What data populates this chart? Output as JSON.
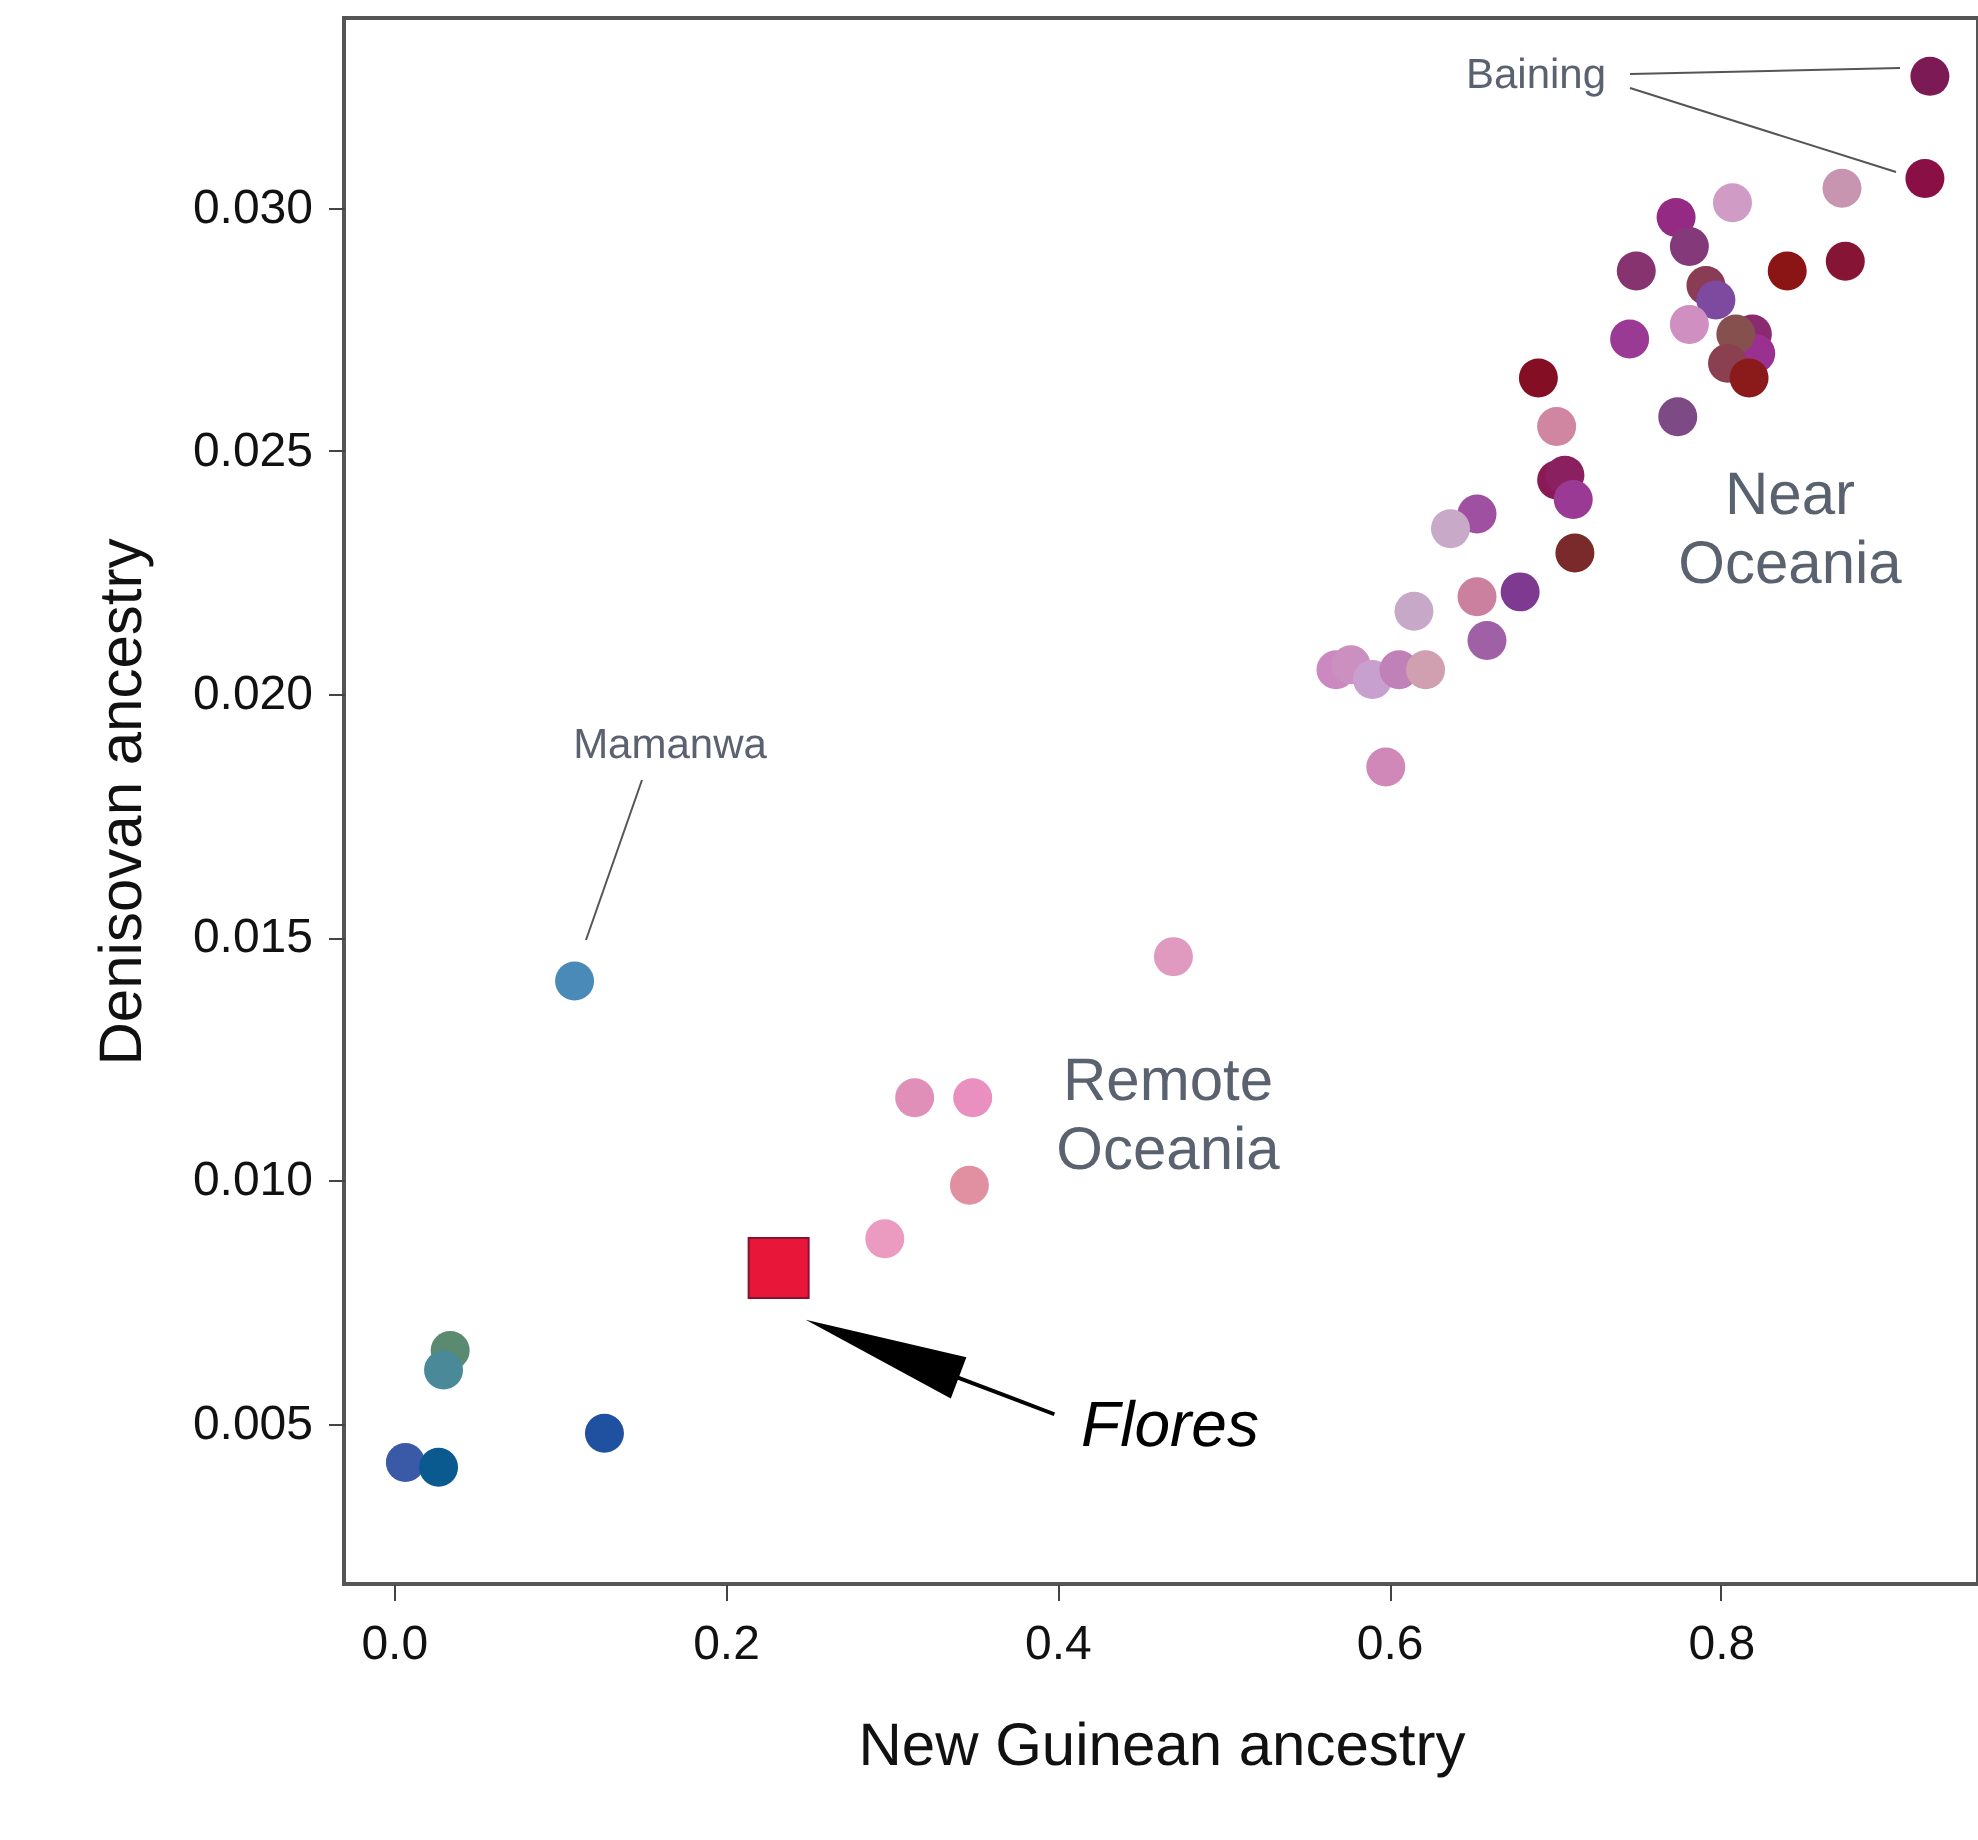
{
  "chart_data": {
    "type": "scatter",
    "xlabel": "New Guinean ancestry",
    "ylabel": "Denisovan ancestry",
    "marker": "circle",
    "xlim": [
      -0.03,
      0.955
    ],
    "ylim": [
      0.0017,
      0.0339
    ],
    "xticks": [
      {
        "value": 0,
        "label": "0.0"
      },
      0.2,
      0.4,
      0.6,
      0.8
    ],
    "yticks": [
      0.005,
      {
        "value": 0.01,
        "label": "0.010"
      },
      0.015,
      {
        "value": 0.02,
        "label": "0.020"
      },
      0.025,
      {
        "value": 0.03,
        "label": "0.030"
      }
    ],
    "series": [
      {
        "x": [
          0.926,
          0.923,
          0.873,
          0.807,
          0.773,
          0.781,
          0.749,
          0.84,
          0.875,
          0.791,
          0.797,
          0.781,
          0.745,
          0.819,
          0.821,
          0.809,
          0.804,
          0.817,
          0.69,
          0.774,
          0.701,
          0.701,
          0.706,
          0.711,
          0.712,
          0.653,
          0.637,
          0.679,
          0.653,
          0.615,
          0.659,
          0.568,
          0.577,
          0.59,
          0.606,
          0.622,
          0.598,
          0.109,
          0.47,
          0.314,
          0.349,
          0.347,
          0.296,
          0.034,
          0.03,
          0.007,
          0.027,
          0.127
        ],
        "values": [
          0.0327,
          0.0306,
          0.0304,
          0.0301,
          0.0298,
          0.0292,
          0.0287,
          0.0287,
          0.0289,
          0.0284,
          0.0281,
          0.0276,
          0.0273,
          0.0274,
          0.027,
          0.0274,
          0.0268,
          0.0265,
          0.0265,
          0.0257,
          0.0255,
          0.0244,
          0.0245,
          0.024,
          0.0229,
          0.0237,
          0.0234,
          0.0221,
          0.022,
          0.0217,
          0.0211,
          0.0205,
          0.0206,
          0.0203,
          0.0205,
          0.0205,
          0.0185,
          0.0141,
          0.0146,
          0.0117,
          0.0117,
          0.0099,
          0.0088,
          0.0065,
          0.0061,
          0.0042,
          0.0041,
          0.0048
        ],
        "colors": [
          "#7b1a55",
          "#8a0f45",
          "#c895b0",
          "#d09cc6",
          "#952a85",
          "#843a7a",
          "#86336f",
          "#8b1515",
          "#861535",
          "#8a3c55",
          "#7d4aa0",
          "#cf8fc0",
          "#9a3a95",
          "#8a2a70",
          "#9a3090",
          "#85504e",
          "#8a4050",
          "#8b1a1a",
          "#840f25",
          "#7d4a85",
          "#d085a0",
          "#8a1a55",
          "#8a2060",
          "#9a3a95",
          "#7a2a2a",
          "#a050a0",
          "#c8aac8",
          "#7d3a90",
          "#cc80a0",
          "#c8a8c8",
          "#a060a5",
          "#cc88c0",
          "#cc90c0",
          "#c8a0d0",
          "#c080b8",
          "#d0a0b0",
          "#d088b8",
          "#4a8ab8",
          "#e09ac0",
          "#e090b8",
          "#ea90c0",
          "#e090a0",
          "#eb9ac0",
          "#5a8a70",
          "#4a8a98",
          "#3a5aa8",
          "#0a5a90",
          "#2050a0"
        ]
      },
      {
        "x": [
          0.232
        ],
        "values": [
          0.0082
        ],
        "color": "#e8173a",
        "marker": "square"
      }
    ],
    "annotations": [
      "Baining",
      "Mamanwa",
      "Flores",
      "Near Oceania",
      "Remote Oceania"
    ]
  }
}
